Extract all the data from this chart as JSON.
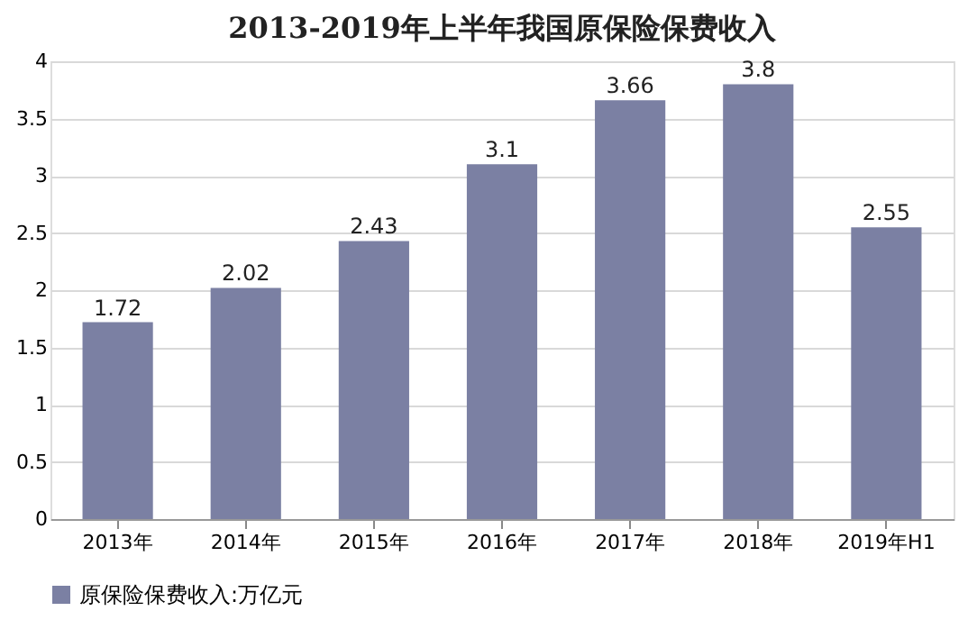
{
  "chart_data": {
    "type": "bar",
    "title": "2013-2019年上半年我国原保险保费收入",
    "categories": [
      "2013年",
      "2014年",
      "2015年",
      "2016年",
      "2017年",
      "2018年",
      "2019年H1"
    ],
    "series": [
      {
        "name": "原保险保费收入:万亿元",
        "color": "#7b80a3",
        "values": [
          1.72,
          2.02,
          2.43,
          3.1,
          3.66,
          3.8,
          2.55
        ]
      }
    ],
    "ylim": [
      0,
      4
    ],
    "yticks": [
      0,
      0.5,
      1,
      1.5,
      2,
      2.5,
      3,
      3.5,
      4
    ],
    "grid": "y",
    "legend": "bottom",
    "data_labels": true
  }
}
